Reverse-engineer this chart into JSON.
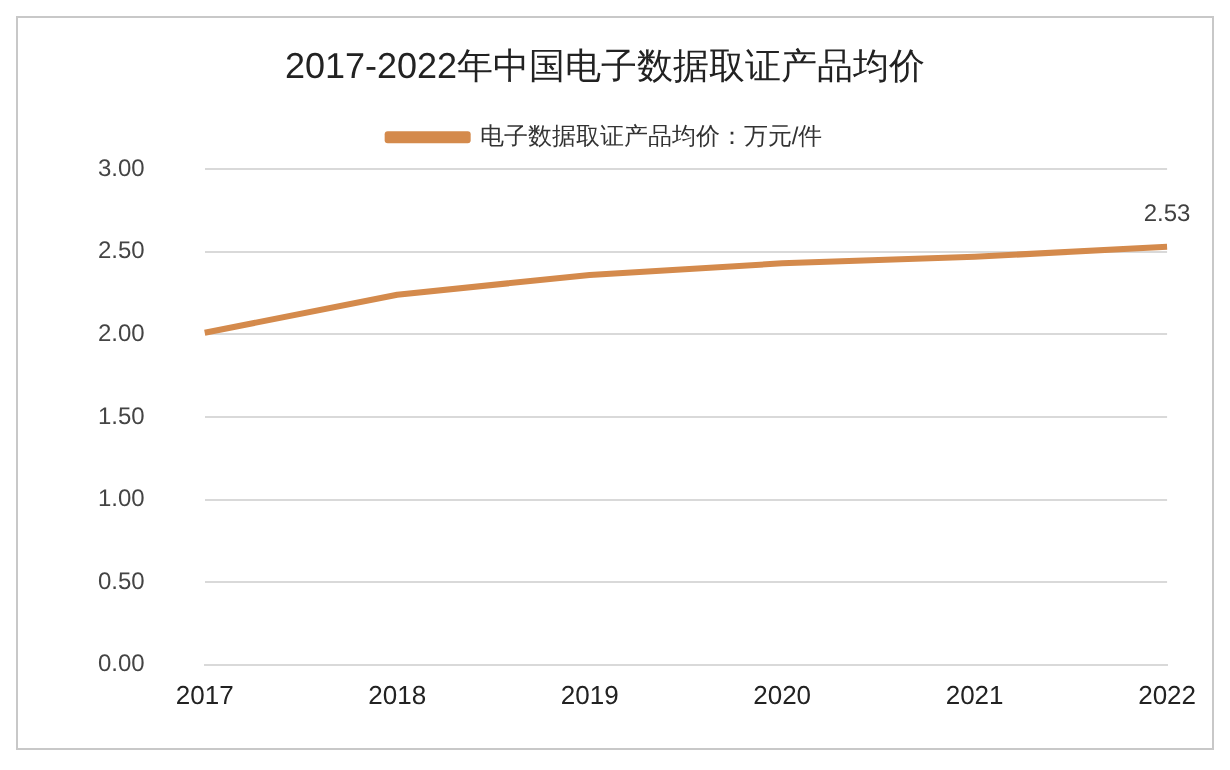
{
  "chart_data": {
    "type": "line",
    "title": "2017-2022年中国电子数据取证产品均价",
    "categories": [
      "2017",
      "2018",
      "2019",
      "2020",
      "2021",
      "2022"
    ],
    "series": [
      {
        "name": "电子数据取证产品均价：万元/件",
        "color": "#d48a4c",
        "values": [
          2.01,
          2.24,
          2.36,
          2.43,
          2.47,
          2.53
        ],
        "value_labels": [
          null,
          null,
          null,
          null,
          null,
          "2.53"
        ]
      }
    ],
    "ylim": [
      0,
      3
    ],
    "yticks": [
      "0.00",
      "0.50",
      "1.00",
      "1.50",
      "2.00",
      "2.50",
      "3.00"
    ],
    "grid": "y",
    "legend": "top",
    "marker": "none",
    "line_style": "solid"
  }
}
